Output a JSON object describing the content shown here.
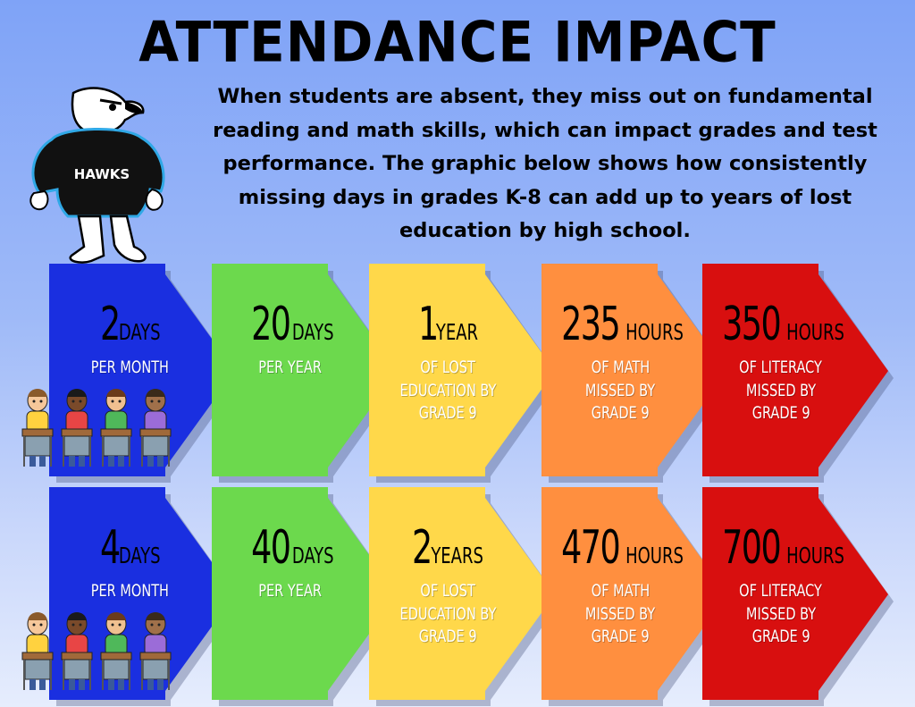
{
  "title": "ATTENDANCE IMPACT",
  "intro": "When  students are absent, they miss out on fundamental reading and math skills, which can impact grades and test performance. The graphic below shows how consistently missing days in grades K-8 can add up to years of lost education by high school.",
  "mascot": {
    "shirt_text": "HAWKS"
  },
  "colors": {
    "blue": "#1a2fe0",
    "green": "#6cd94d",
    "yellow": "#ffd84a",
    "orange": "#ff8f3f",
    "red": "#d80f0f"
  },
  "rows": [
    {
      "cells": [
        {
          "number": "2",
          "unit": "DAYS",
          "lines": [
            "PER MONTH"
          ]
        },
        {
          "number": "20",
          "unit": "DAYS",
          "lines": [
            "PER YEAR"
          ]
        },
        {
          "number": "1",
          "unit": "YEAR",
          "lines": [
            "OF LOST",
            "EDUCATION BY",
            "GRADE 9"
          ]
        },
        {
          "number": "235",
          "unit": "HOURS",
          "lines": [
            "OF MATH",
            "MISSED BY",
            "GRADE 9"
          ]
        },
        {
          "number": "350",
          "unit": "HOURS",
          "lines": [
            "OF LITERACY",
            "MISSED BY",
            "GRADE 9"
          ]
        }
      ]
    },
    {
      "cells": [
        {
          "number": "4",
          "unit": "DAYS",
          "lines": [
            "PER MONTH"
          ]
        },
        {
          "number": "40",
          "unit": "DAYS",
          "lines": [
            "PER YEAR"
          ]
        },
        {
          "number": "2",
          "unit": "YEARS",
          "lines": [
            "OF LOST",
            "EDUCATION BY",
            "GRADE 9"
          ]
        },
        {
          "number": "470",
          "unit": "HOURS",
          "lines": [
            "OF MATH",
            "MISSED BY",
            "GRADE 9"
          ]
        },
        {
          "number": "700",
          "unit": "HOURS",
          "lines": [
            "OF LITERACY",
            "MISSED BY",
            "GRADE 9"
          ]
        }
      ]
    }
  ]
}
